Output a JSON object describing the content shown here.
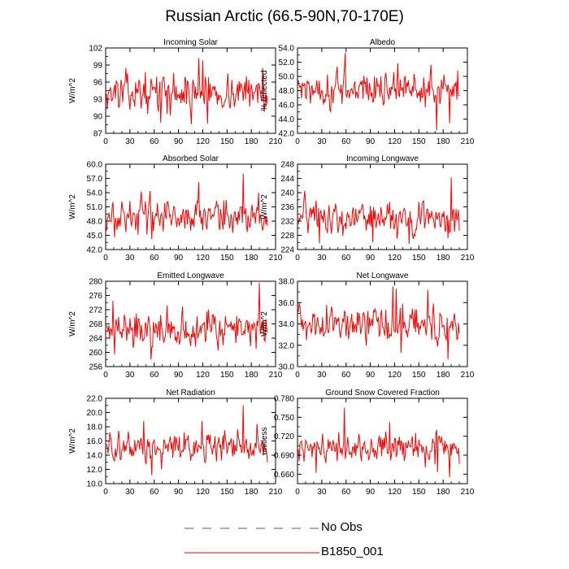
{
  "figure": {
    "title": "Russian Arctic (66.5-90N,70-170E)"
  },
  "legend": {
    "items": [
      {
        "label": "No Obs",
        "color": "#5555aa",
        "style": "dashed"
      },
      {
        "label": "B1850_001",
        "color": "#ff0000",
        "style": "solid"
      }
    ]
  },
  "chart_data": [
    {
      "type": "line",
      "title": "Incoming Solar",
      "ylabel": "W/m^2",
      "xlim": [
        0,
        210
      ],
      "ylim": [
        87,
        102
      ],
      "xticks": [
        0,
        30,
        60,
        90,
        120,
        150,
        180,
        210
      ],
      "yticks": [
        87,
        90,
        93,
        96,
        99,
        102
      ],
      "ytick_labels": [
        "87",
        "90",
        "93",
        "96",
        "99",
        "102"
      ],
      "n": 200,
      "mean": 94.2,
      "amp": 1.9,
      "peaks": [
        [
          114,
          100.2
        ],
        [
          119,
          99.8
        ],
        [
          105,
          88.6
        ],
        [
          193,
          98.5
        ],
        [
          67,
          88.9
        ],
        [
          125,
          88.7
        ]
      ],
      "series": [
        {
          "name": "B1850_001",
          "color": "#ff0000"
        }
      ]
    },
    {
      "type": "line",
      "title": "Albedo",
      "ylabel": "% reflected",
      "xlim": [
        0,
        210
      ],
      "ylim": [
        42,
        54
      ],
      "xticks": [
        0,
        30,
        60,
        90,
        120,
        150,
        180,
        210
      ],
      "yticks": [
        42,
        44,
        46,
        48,
        50,
        52,
        54
      ],
      "ytick_labels": [
        "42.0",
        "44.0",
        "46.0",
        "48.0",
        "50.0",
        "52.0",
        "54.0"
      ],
      "n": 200,
      "mean": 48.3,
      "amp": 1.5,
      "peaks": [
        [
          58,
          53.3
        ],
        [
          57,
          51.2
        ],
        [
          171,
          42.4
        ],
        [
          187,
          43.4
        ],
        [
          197,
          50.8
        ],
        [
          40,
          45.0
        ]
      ],
      "series": [
        {
          "name": "B1850_001",
          "color": "#ff0000"
        }
      ]
    },
    {
      "type": "line",
      "title": "Absorbed Solar",
      "ylabel": "W/m^2",
      "xlim": [
        0,
        210
      ],
      "ylim": [
        42,
        60
      ],
      "xticks": [
        0,
        30,
        60,
        90,
        120,
        150,
        180,
        210
      ],
      "yticks": [
        42,
        45,
        48,
        51,
        54,
        57,
        60
      ],
      "ytick_labels": [
        "42.0",
        "45.0",
        "48.0",
        "51.0",
        "54.0",
        "57.0",
        "60.0"
      ],
      "n": 200,
      "mean": 49.2,
      "amp": 2.1,
      "peaks": [
        [
          169,
          58.0
        ],
        [
          114,
          56.2
        ],
        [
          56,
          44.2
        ],
        [
          10,
          44.6
        ],
        [
          200,
          45.2
        ],
        [
          188,
          54.0
        ]
      ],
      "series": [
        {
          "name": "B1850_001",
          "color": "#ff0000"
        }
      ]
    },
    {
      "type": "line",
      "title": "Incoming Longwave",
      "ylabel": "W/m^2",
      "xlim": [
        0,
        210
      ],
      "ylim": [
        224,
        248
      ],
      "xticks": [
        0,
        30,
        60,
        90,
        120,
        150,
        180,
        210
      ],
      "yticks": [
        224,
        228,
        232,
        236,
        240,
        244,
        248
      ],
      "ytick_labels": [
        "224",
        "228",
        "232",
        "236",
        "240",
        "244",
        "248"
      ],
      "n": 200,
      "mean": 233.0,
      "amp": 2.8,
      "peaks": [
        [
          189,
          244.3
        ],
        [
          8,
          240.5
        ],
        [
          92,
          226.0
        ],
        [
          137,
          225.6
        ],
        [
          26,
          225.8
        ],
        [
          185,
          227.2
        ]
      ],
      "series": [
        {
          "name": "B1850_001",
          "color": "#ff0000"
        }
      ]
    },
    {
      "type": "line",
      "title": "Emitted Longwave",
      "ylabel": "W/m^2",
      "xlim": [
        0,
        210
      ],
      "ylim": [
        256,
        280
      ],
      "xticks": [
        0,
        30,
        60,
        90,
        120,
        150,
        180,
        210
      ],
      "yticks": [
        256,
        260,
        264,
        268,
        272,
        276,
        280
      ],
      "ytick_labels": [
        "256",
        "260",
        "264",
        "268",
        "272",
        "276",
        "280"
      ],
      "n": 200,
      "mean": 266.8,
      "amp": 3.0,
      "peaks": [
        [
          189,
          279.6
        ],
        [
          8,
          274.5
        ],
        [
          55,
          258.0
        ],
        [
          75,
          273.2
        ],
        [
          10,
          259.5
        ],
        [
          185,
          261.0
        ]
      ],
      "series": [
        {
          "name": "B1850_001",
          "color": "#ff0000"
        }
      ]
    },
    {
      "type": "line",
      "title": "Net Longwave",
      "ylabel": "W/m^2",
      "xlim": [
        0,
        210
      ],
      "ylim": [
        30,
        38
      ],
      "xticks": [
        0,
        30,
        60,
        90,
        120,
        150,
        180,
        210
      ],
      "yticks": [
        30,
        32,
        34,
        36,
        38
      ],
      "ytick_labels": [
        "30.0",
        "32.0",
        "34.0",
        "36.0",
        "38.0"
      ],
      "n": 200,
      "mean": 34.0,
      "amp": 1.0,
      "peaks": [
        [
          117,
          37.5
        ],
        [
          121,
          37.3
        ],
        [
          185,
          30.7
        ],
        [
          201,
          31.5
        ],
        [
          127,
          31.3
        ],
        [
          160,
          37.2
        ]
      ],
      "series": [
        {
          "name": "B1850_001",
          "color": "#ff0000"
        }
      ]
    },
    {
      "type": "line",
      "title": "Net Radiation",
      "ylabel": "W/m^2",
      "xlim": [
        0,
        210
      ],
      "ylim": [
        10,
        22
      ],
      "xticks": [
        0,
        30,
        60,
        90,
        120,
        150,
        180,
        210
      ],
      "yticks": [
        10,
        12,
        14,
        16,
        18,
        20,
        22
      ],
      "ytick_labels": [
        "10.0",
        "12.0",
        "14.0",
        "16.0",
        "18.0",
        "20.0",
        "22.0"
      ],
      "n": 200,
      "mean": 15.0,
      "amp": 1.3,
      "peaks": [
        [
          169,
          21.0
        ],
        [
          56,
          11.2
        ],
        [
          46,
          18.8
        ],
        [
          118,
          18.8
        ],
        [
          186,
          18.4
        ],
        [
          10,
          13.2
        ]
      ],
      "series": [
        {
          "name": "B1850_001",
          "color": "#ff0000"
        }
      ]
    },
    {
      "type": "line",
      "title": "Ground Snow Covered Fraction",
      "ylabel": "unitless",
      "xlim": [
        0,
        210
      ],
      "ylim": [
        0.645,
        0.78
      ],
      "xticks": [
        0,
        30,
        60,
        90,
        120,
        150,
        180,
        210
      ],
      "yticks": [
        0.66,
        0.69,
        0.72,
        0.75,
        0.78
      ],
      "ytick_labels": [
        "0.660",
        "0.690",
        "0.720",
        "0.750",
        "0.780"
      ],
      "n": 200,
      "mean": 0.703,
      "amp": 0.014,
      "peaks": [
        [
          57,
          0.765
        ],
        [
          187,
          0.655
        ],
        [
          172,
          0.663
        ],
        [
          22,
          0.662
        ],
        [
          200,
          0.737
        ],
        [
          113,
          0.742
        ]
      ],
      "series": [
        {
          "name": "B1850_001",
          "color": "#ff0000"
        }
      ]
    }
  ]
}
